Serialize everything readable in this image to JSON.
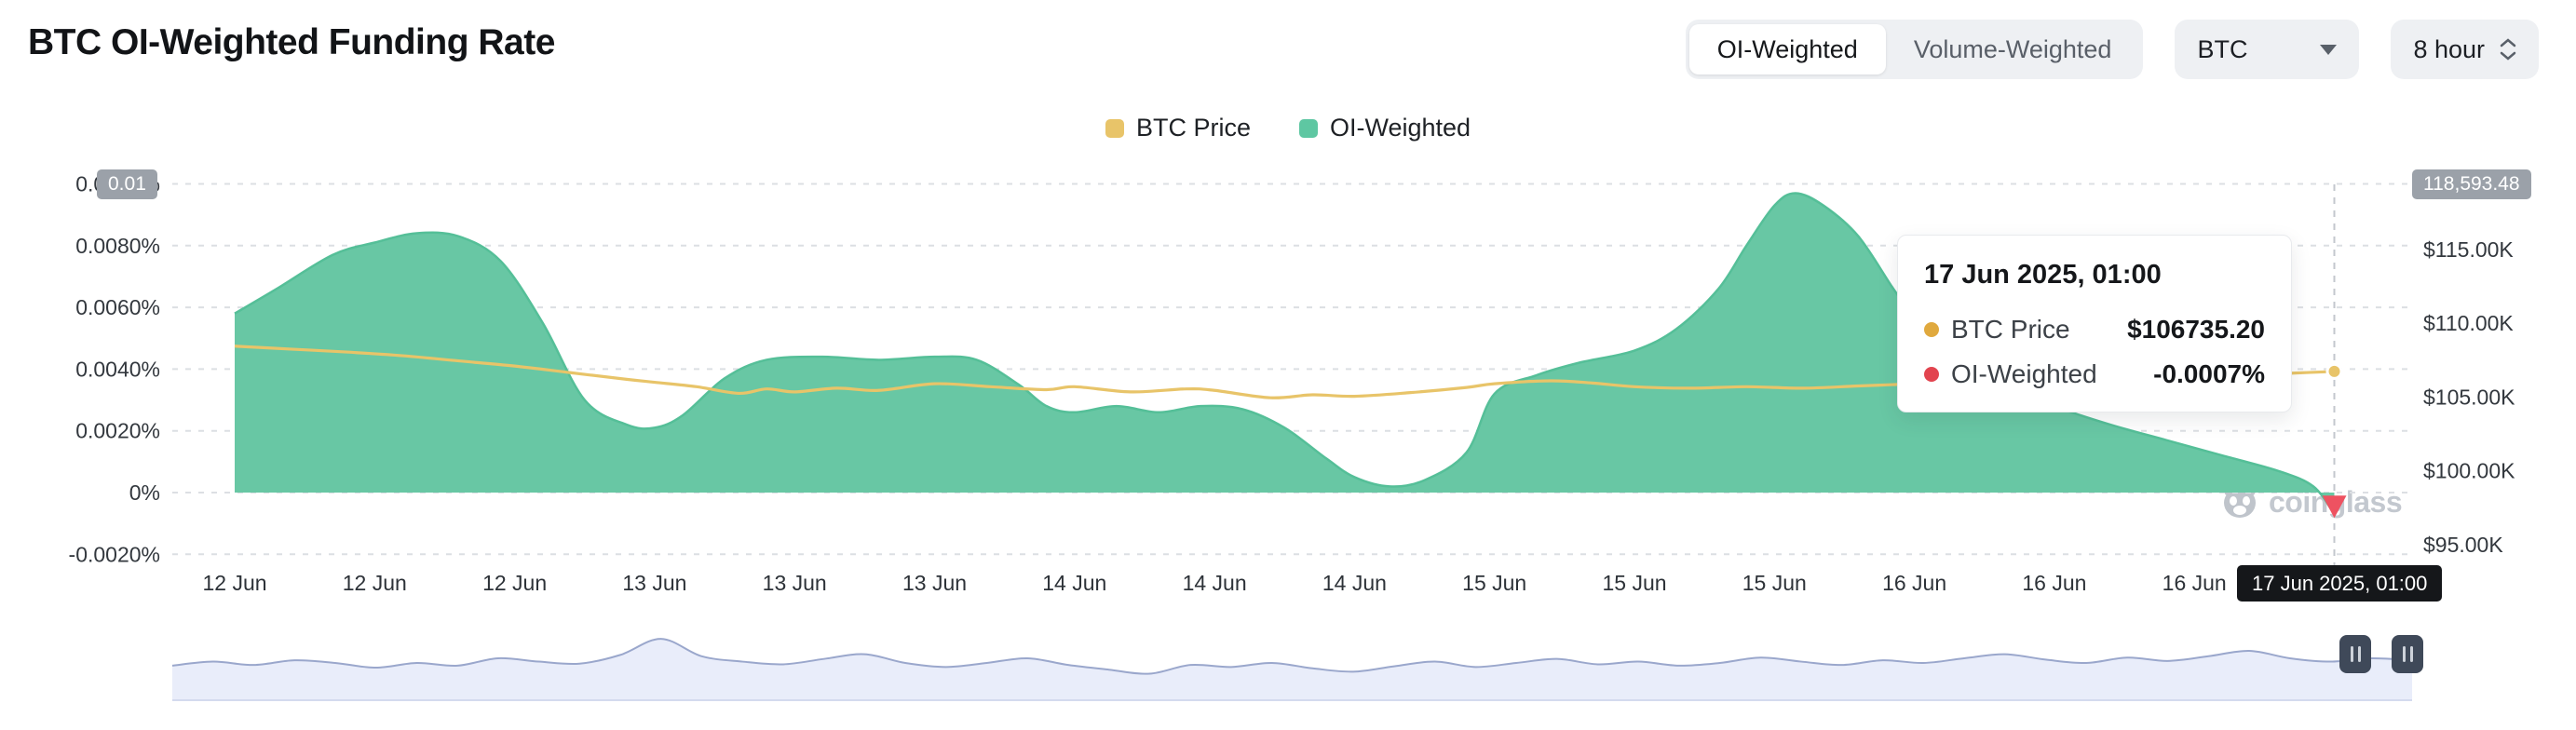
{
  "header": {
    "title": "BTC OI-Weighted Funding Rate",
    "toggle": {
      "options": [
        "OI-Weighted",
        "Volume-Weighted"
      ],
      "selected": "OI-Weighted"
    },
    "symbol_select": {
      "value": "BTC"
    },
    "interval_select": {
      "value": "8 hour"
    }
  },
  "legend": {
    "items": [
      {
        "label": "BTC Price",
        "color": "#e8c469"
      },
      {
        "label": "OI-Weighted",
        "color": "#5ec7a2"
      }
    ]
  },
  "badges": {
    "left_axis_current": "0.01",
    "right_axis_current": "118,593.48",
    "x_axis_hover": "17 Jun 2025, 01:00"
  },
  "tooltip": {
    "title": "17 Jun 2025, 01:00",
    "rows": [
      {
        "label": "BTC Price",
        "value": "$106735.20",
        "dot_color": "#e0a93e"
      },
      {
        "label": "OI-Weighted",
        "value": "-0.0007%",
        "dot_color": "#e2444f"
      }
    ]
  },
  "watermark": "coinglass",
  "chart_data": {
    "type": "area",
    "title": "BTC OI-Weighted Funding Rate",
    "x_unit": "8-hour intervals, 12 Jun 2025 01:00 through 17 Jun 2025 01:00",
    "x_tick_labels": [
      "12 Jun",
      "12 Jun",
      "12 Jun",
      "13 Jun",
      "13 Jun",
      "13 Jun",
      "14 Jun",
      "14 Jun",
      "14 Jun",
      "15 Jun",
      "15 Jun",
      "15 Jun",
      "16 Jun",
      "16 Jun",
      "16 Jun"
    ],
    "x_tick_positions": [
      0,
      1,
      2,
      3,
      4,
      5,
      6,
      7,
      8,
      9,
      10,
      11,
      12,
      13,
      14
    ],
    "left_axis": {
      "unit": "%",
      "tick_labels": [
        "0.0100%",
        "0.0080%",
        "0.0060%",
        "0.0040%",
        "0.0020%",
        "0%",
        "-0.0020%"
      ],
      "tick_values": [
        0.01,
        0.008,
        0.006,
        0.004,
        0.002,
        0,
        -0.002
      ],
      "range": [
        -0.002,
        0.01
      ],
      "grid": "dashed"
    },
    "right_axis": {
      "unit": "USD",
      "tick_labels": [
        "$115.00K",
        "$110.00K",
        "$105.00K",
        "$100.00K",
        "$95.00K"
      ],
      "tick_values": [
        115000,
        110000,
        105000,
        100000,
        95000
      ]
    },
    "series": [
      {
        "name": "OI-Weighted",
        "type": "area",
        "axis": "left",
        "color": "#68c7a4",
        "line_color": "#55bf98",
        "unit": "%",
        "points": [
          [
            0,
            0.0058
          ],
          [
            0.3,
            0.0066
          ],
          [
            0.7,
            0.0077
          ],
          [
            1,
            0.0081
          ],
          [
            1.3,
            0.0084
          ],
          [
            1.6,
            0.0083
          ],
          [
            1.9,
            0.0075
          ],
          [
            2.2,
            0.0055
          ],
          [
            2.5,
            0.003
          ],
          [
            2.8,
            0.0022
          ],
          [
            3,
            0.0021
          ],
          [
            3.2,
            0.0025
          ],
          [
            3.5,
            0.0037
          ],
          [
            3.8,
            0.0043
          ],
          [
            4.2,
            0.0044
          ],
          [
            4.6,
            0.0043
          ],
          [
            5,
            0.0044
          ],
          [
            5.3,
            0.0043
          ],
          [
            5.6,
            0.0035
          ],
          [
            5.8,
            0.0028
          ],
          [
            6,
            0.0026
          ],
          [
            6.3,
            0.0028
          ],
          [
            6.6,
            0.0026
          ],
          [
            6.9,
            0.0028
          ],
          [
            7.2,
            0.0027
          ],
          [
            7.5,
            0.0021
          ],
          [
            7.8,
            0.0011
          ],
          [
            8,
            0.0005
          ],
          [
            8.25,
            0.0002
          ],
          [
            8.5,
            0.0004
          ],
          [
            8.8,
            0.0013
          ],
          [
            9,
            0.0032
          ],
          [
            9.3,
            0.0038
          ],
          [
            9.6,
            0.0042
          ],
          [
            10,
            0.0046
          ],
          [
            10.3,
            0.0053
          ],
          [
            10.6,
            0.0066
          ],
          [
            10.8,
            0.008
          ],
          [
            11,
            0.0093
          ],
          [
            11.15,
            0.0097
          ],
          [
            11.35,
            0.0093
          ],
          [
            11.6,
            0.0083
          ],
          [
            11.85,
            0.0066
          ],
          [
            12,
            0.0057
          ],
          [
            12.3,
            0.0044
          ],
          [
            12.6,
            0.0036
          ],
          [
            13,
            0.0028
          ],
          [
            13.4,
            0.0022
          ],
          [
            13.8,
            0.0017
          ],
          [
            14.2,
            0.0012
          ],
          [
            14.6,
            0.0007
          ],
          [
            14.85,
            0.0002
          ],
          [
            15,
            -0.0007
          ]
        ]
      },
      {
        "name": "BTC Price",
        "type": "line",
        "axis": "right",
        "color": "#e8c469",
        "unit": "USD",
        "points": [
          [
            0,
            108450
          ],
          [
            0.4,
            108250
          ],
          [
            0.8,
            108050
          ],
          [
            1.2,
            107800
          ],
          [
            1.6,
            107450
          ],
          [
            2,
            107100
          ],
          [
            2.4,
            106650
          ],
          [
            2.8,
            106200
          ],
          [
            3,
            106000
          ],
          [
            3.3,
            105700
          ],
          [
            3.6,
            105250
          ],
          [
            3.8,
            105550
          ],
          [
            4,
            105350
          ],
          [
            4.3,
            105600
          ],
          [
            4.6,
            105450
          ],
          [
            5,
            105900
          ],
          [
            5.4,
            105700
          ],
          [
            5.8,
            105500
          ],
          [
            6,
            105700
          ],
          [
            6.4,
            105350
          ],
          [
            6.8,
            105550
          ],
          [
            7,
            105450
          ],
          [
            7.4,
            104950
          ],
          [
            7.7,
            105150
          ],
          [
            8,
            105050
          ],
          [
            8.4,
            105300
          ],
          [
            8.8,
            105650
          ],
          [
            9,
            105900
          ],
          [
            9.4,
            106100
          ],
          [
            9.7,
            105950
          ],
          [
            10,
            105700
          ],
          [
            10.4,
            105600
          ],
          [
            10.8,
            105700
          ],
          [
            11.2,
            105600
          ],
          [
            11.6,
            105750
          ],
          [
            12,
            105900
          ],
          [
            12.4,
            106100
          ],
          [
            12.8,
            106300
          ],
          [
            13.2,
            106500
          ],
          [
            13.6,
            106400
          ],
          [
            14,
            106600
          ],
          [
            14.4,
            106500
          ],
          [
            14.7,
            106620
          ],
          [
            15,
            106735.2
          ]
        ]
      }
    ],
    "hover": {
      "x": 15,
      "label": "17 Jun 2025, 01:00",
      "btc_price": 106735.2,
      "oi_weighted_pct": -0.0007,
      "marker_triangle_color": "#ee5261",
      "marker_dot_color": "#e8c469"
    },
    "navigator": {
      "fill": "#e9edfa",
      "line": "#9aa7cc",
      "values": [
        0.46,
        0.52,
        0.47,
        0.54,
        0.5,
        0.43,
        0.5,
        0.46,
        0.57,
        0.52,
        0.49,
        0.62,
        0.86,
        0.6,
        0.52,
        0.48,
        0.56,
        0.63,
        0.5,
        0.44,
        0.5,
        0.57,
        0.47,
        0.4,
        0.34,
        0.47,
        0.44,
        0.5,
        0.42,
        0.37,
        0.45,
        0.52,
        0.44,
        0.5,
        0.56,
        0.48,
        0.52,
        0.46,
        0.5,
        0.58,
        0.52,
        0.47,
        0.54,
        0.5,
        0.57,
        0.63,
        0.55,
        0.5,
        0.58,
        0.53,
        0.6,
        0.68,
        0.57,
        0.52,
        0.57,
        0.54
      ]
    }
  }
}
